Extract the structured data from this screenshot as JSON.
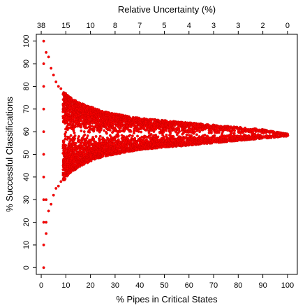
{
  "chart_data": {
    "type": "scatter",
    "title": "",
    "xlabel": "% Pipes in Critical States",
    "ylabel": "% Successful Classifications",
    "x2label": "Relative Uncertainty (%)",
    "xlim": [
      -2,
      104
    ],
    "ylim": [
      -3,
      103
    ],
    "x_ticks": [
      "0",
      "10",
      "20",
      "30",
      "40",
      "50",
      "60",
      "70",
      "80",
      "90",
      "100"
    ],
    "y_ticks": [
      "0",
      "10",
      "20",
      "30",
      "40",
      "50",
      "60",
      "70",
      "80",
      "90",
      "100"
    ],
    "x2_ticks": [
      "38",
      "15",
      "10",
      "8",
      "7",
      "5",
      "4",
      "3",
      "3",
      "2",
      "0"
    ],
    "grid": false,
    "point_color": "#ff0000",
    "point_edge_color": "#cc0000",
    "series": [
      {
        "values": [
          {
            "x": 1,
            "y": 0
          },
          {
            "x": 1,
            "y": 10
          },
          {
            "x": 1,
            "y": 20
          },
          {
            "x": 1,
            "y": 30
          },
          {
            "x": 1,
            "y": 40
          },
          {
            "x": 1,
            "y": 50
          },
          {
            "x": 1,
            "y": 60
          },
          {
            "x": 1,
            "y": 70
          },
          {
            "x": 1,
            "y": 80
          },
          {
            "x": 1,
            "y": 90
          },
          {
            "x": 1,
            "y": 100
          },
          {
            "x": 2,
            "y": 15
          },
          {
            "x": 2,
            "y": 20
          },
          {
            "x": 2,
            "y": 30
          },
          {
            "x": 2,
            "y": 95
          },
          {
            "x": 3,
            "y": 25
          },
          {
            "x": 3,
            "y": 93
          },
          {
            "x": 4,
            "y": 28
          },
          {
            "x": 4,
            "y": 88
          },
          {
            "x": 5,
            "y": 32
          },
          {
            "x": 5,
            "y": 85
          },
          {
            "x": 6,
            "y": 35
          },
          {
            "x": 6,
            "y": 82
          },
          {
            "x": 7,
            "y": 36
          },
          {
            "x": 7,
            "y": 80
          },
          {
            "x": 8,
            "y": 38
          },
          {
            "x": 8,
            "y": 79
          }
        ]
      }
    ],
    "envelope": [
      {
        "x": 9,
        "low": 38,
        "high": 78
      },
      {
        "x": 12,
        "low": 42,
        "high": 75
      },
      {
        "x": 15,
        "low": 44,
        "high": 73
      },
      {
        "x": 20,
        "low": 47,
        "high": 71
      },
      {
        "x": 25,
        "low": 49,
        "high": 69
      },
      {
        "x": 30,
        "low": 50,
        "high": 68
      },
      {
        "x": 40,
        "low": 52,
        "high": 66
      },
      {
        "x": 50,
        "low": 53,
        "high": 65
      },
      {
        "x": 60,
        "low": 54,
        "high": 64
      },
      {
        "x": 70,
        "low": 55,
        "high": 63
      },
      {
        "x": 80,
        "low": 56,
        "high": 62
      },
      {
        "x": 90,
        "low": 57,
        "high": 61
      },
      {
        "x": 95,
        "low": 57.5,
        "high": 60
      },
      {
        "x": 100,
        "low": 58,
        "high": 59
      }
    ]
  }
}
